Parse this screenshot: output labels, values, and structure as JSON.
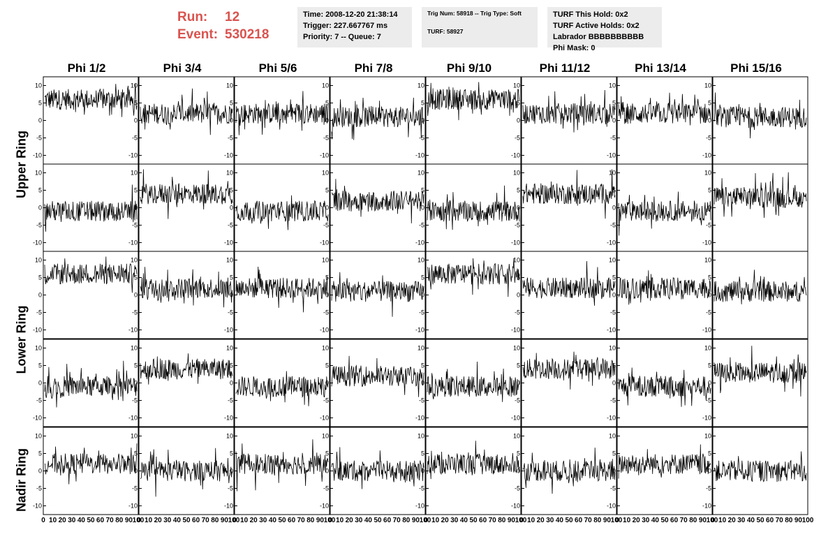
{
  "header": {
    "run_label": "Run:",
    "run_value": "12",
    "event_label": "Event:",
    "event_value": "530218"
  },
  "info_time": {
    "time": "Time: 2008-12-20 21:38:14",
    "trigger": "Trigger: 227.667767 ms",
    "priority": "Priority: 7 -- Queue: 7"
  },
  "info_trig": {
    "trig": "Trig Num: 58918 -- Trig Type: Soft",
    "turf": "TURF: 58927"
  },
  "info_turf": {
    "this_hold": "TURF This Hold: 0x2",
    "active_holds": "TURF Active Holds: 0x2",
    "labrador": "Labrador BBBBBBBBBB",
    "phi_mask": "Phi Mask: 0"
  },
  "columns": [
    "Phi 1/2",
    "Phi 3/4",
    "Phi 5/6",
    "Phi 7/8",
    "Phi 9/10",
    "Phi 11/12",
    "Phi 13/14",
    "Phi 15/16"
  ],
  "rings": [
    "Upper Ring",
    "Lower Ring",
    "Nadir Ring"
  ],
  "axes": {
    "y_ticks": [
      "10",
      "5",
      "0",
      "-5",
      "-10"
    ],
    "x_ticks": [
      "0",
      "10",
      "20",
      "30",
      "40",
      "50",
      "60",
      "70",
      "80",
      "90",
      "100"
    ]
  },
  "trace_levels": [
    [
      6,
      2,
      2,
      1,
      6,
      2,
      2,
      1
    ],
    [
      -1,
      4,
      -1,
      2,
      -1,
      4,
      -1,
      3
    ],
    [
      6,
      2,
      2,
      1,
      6,
      2,
      2,
      1
    ],
    [
      -1,
      4,
      -1,
      2,
      -1,
      4,
      -1,
      3
    ],
    [
      2,
      0,
      2,
      0,
      2,
      0,
      2,
      0
    ]
  ],
  "colors": {
    "run_text": "#d9534f",
    "info_bg": "#ececec",
    "trace": "#000000"
  }
}
